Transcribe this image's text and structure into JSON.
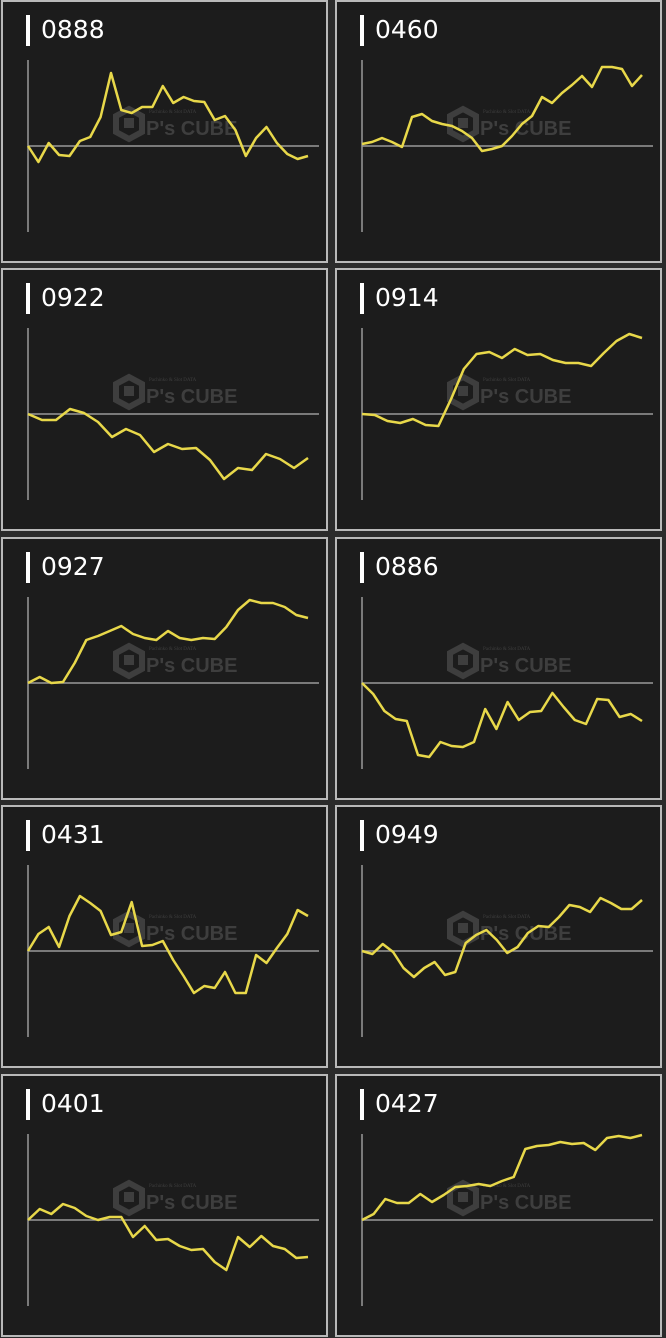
{
  "watermark": {
    "logo_text": "P's CUBE",
    "tagline": "Pachinko & Slot DATA"
  },
  "colors": {
    "line": "#e8d84a",
    "axis": "#9a9a9a",
    "panel_bg": "#1c1c1c",
    "border": "#b9b9b9"
  },
  "chart_data": [
    {
      "type": "line",
      "title": "0888",
      "ylim": [
        -86,
        86
      ],
      "grid": false,
      "values": [
        0,
        -16,
        3,
        -9,
        -10,
        5,
        9,
        29,
        73,
        36,
        33,
        39,
        39,
        60,
        43,
        49,
        45,
        44,
        26,
        30,
        16,
        -10,
        8,
        19,
        3,
        -8,
        -13,
        -10
      ]
    },
    {
      "type": "line",
      "title": "0460",
      "ylim": [
        -86,
        86
      ],
      "grid": false,
      "values": [
        2,
        4,
        8,
        4,
        -1,
        29,
        32,
        25,
        22,
        20,
        15,
        8,
        -5,
        -3,
        0,
        10,
        22,
        30,
        49,
        43,
        53,
        61,
        70,
        59,
        79,
        79,
        77,
        60,
        71
      ]
    },
    {
      "type": "line",
      "title": "0922",
      "ylim": [
        -86,
        86
      ],
      "grid": false,
      "values": [
        0,
        -6,
        -6,
        5,
        1,
        -8,
        -23,
        -15,
        -21,
        -38,
        -30,
        -35,
        -34,
        -46,
        -65,
        -54,
        -56,
        -40,
        -45,
        -54,
        -44
      ]
    },
    {
      "type": "line",
      "title": "0914",
      "ylim": [
        -86,
        86
      ],
      "grid": false,
      "values": [
        0,
        -1,
        -7,
        -9,
        -5,
        -11,
        -12,
        15,
        45,
        60,
        62,
        56,
        65,
        59,
        60,
        54,
        51,
        51,
        48,
        61,
        73,
        80,
        76
      ]
    },
    {
      "type": "line",
      "title": "0927",
      "ylim": [
        -86,
        86
      ],
      "grid": false,
      "values": [
        0,
        6,
        0,
        1,
        20,
        43,
        47,
        52,
        57,
        49,
        45,
        43,
        52,
        45,
        43,
        45,
        44,
        56,
        73,
        83,
        80,
        80,
        76,
        68,
        65
      ]
    },
    {
      "type": "line",
      "title": "0886",
      "ylim": [
        -86,
        86
      ],
      "grid": false,
      "values": [
        0,
        -11,
        -28,
        -36,
        -38,
        -72,
        -74,
        -59,
        -63,
        -64,
        -59,
        -26,
        -46,
        -19,
        -37,
        -29,
        -28,
        -10,
        -24,
        -37,
        -41,
        -16,
        -17,
        -34,
        -31,
        -38
      ]
    },
    {
      "type": "line",
      "title": "0431",
      "ylim": [
        -86,
        86
      ],
      "grid": false,
      "values": [
        0,
        17,
        24,
        4,
        35,
        55,
        48,
        40,
        16,
        19,
        49,
        5,
        6,
        10,
        -9,
        -25,
        -42,
        -35,
        -37,
        -21,
        -42,
        -42,
        -4,
        -12,
        3,
        17,
        41,
        35
      ]
    },
    {
      "type": "line",
      "title": "0949",
      "ylim": [
        -86,
        86
      ],
      "grid": false,
      "values": [
        0,
        -3,
        7,
        -1,
        -17,
        -26,
        -17,
        -11,
        -24,
        -21,
        8,
        16,
        21,
        11,
        -2,
        4,
        18,
        25,
        24,
        34,
        46,
        44,
        39,
        53,
        48,
        42,
        42,
        51
      ]
    },
    {
      "type": "line",
      "title": "0401",
      "ylim": [
        -86,
        86
      ],
      "grid": false,
      "values": [
        0,
        11,
        6,
        16,
        12,
        4,
        0,
        3,
        3,
        -17,
        -6,
        -20,
        -19,
        -26,
        -30,
        -29,
        -42,
        -50,
        -17,
        -27,
        -16,
        -26,
        -29,
        -38,
        -37
      ]
    },
    {
      "type": "line",
      "title": "0427",
      "ylim": [
        -86,
        86
      ],
      "grid": false,
      "values": [
        0,
        6,
        21,
        17,
        17,
        26,
        18,
        25,
        33,
        34,
        36,
        34,
        39,
        43,
        71,
        74,
        75,
        78,
        76,
        77,
        70,
        82,
        84,
        82,
        85
      ]
    }
  ]
}
